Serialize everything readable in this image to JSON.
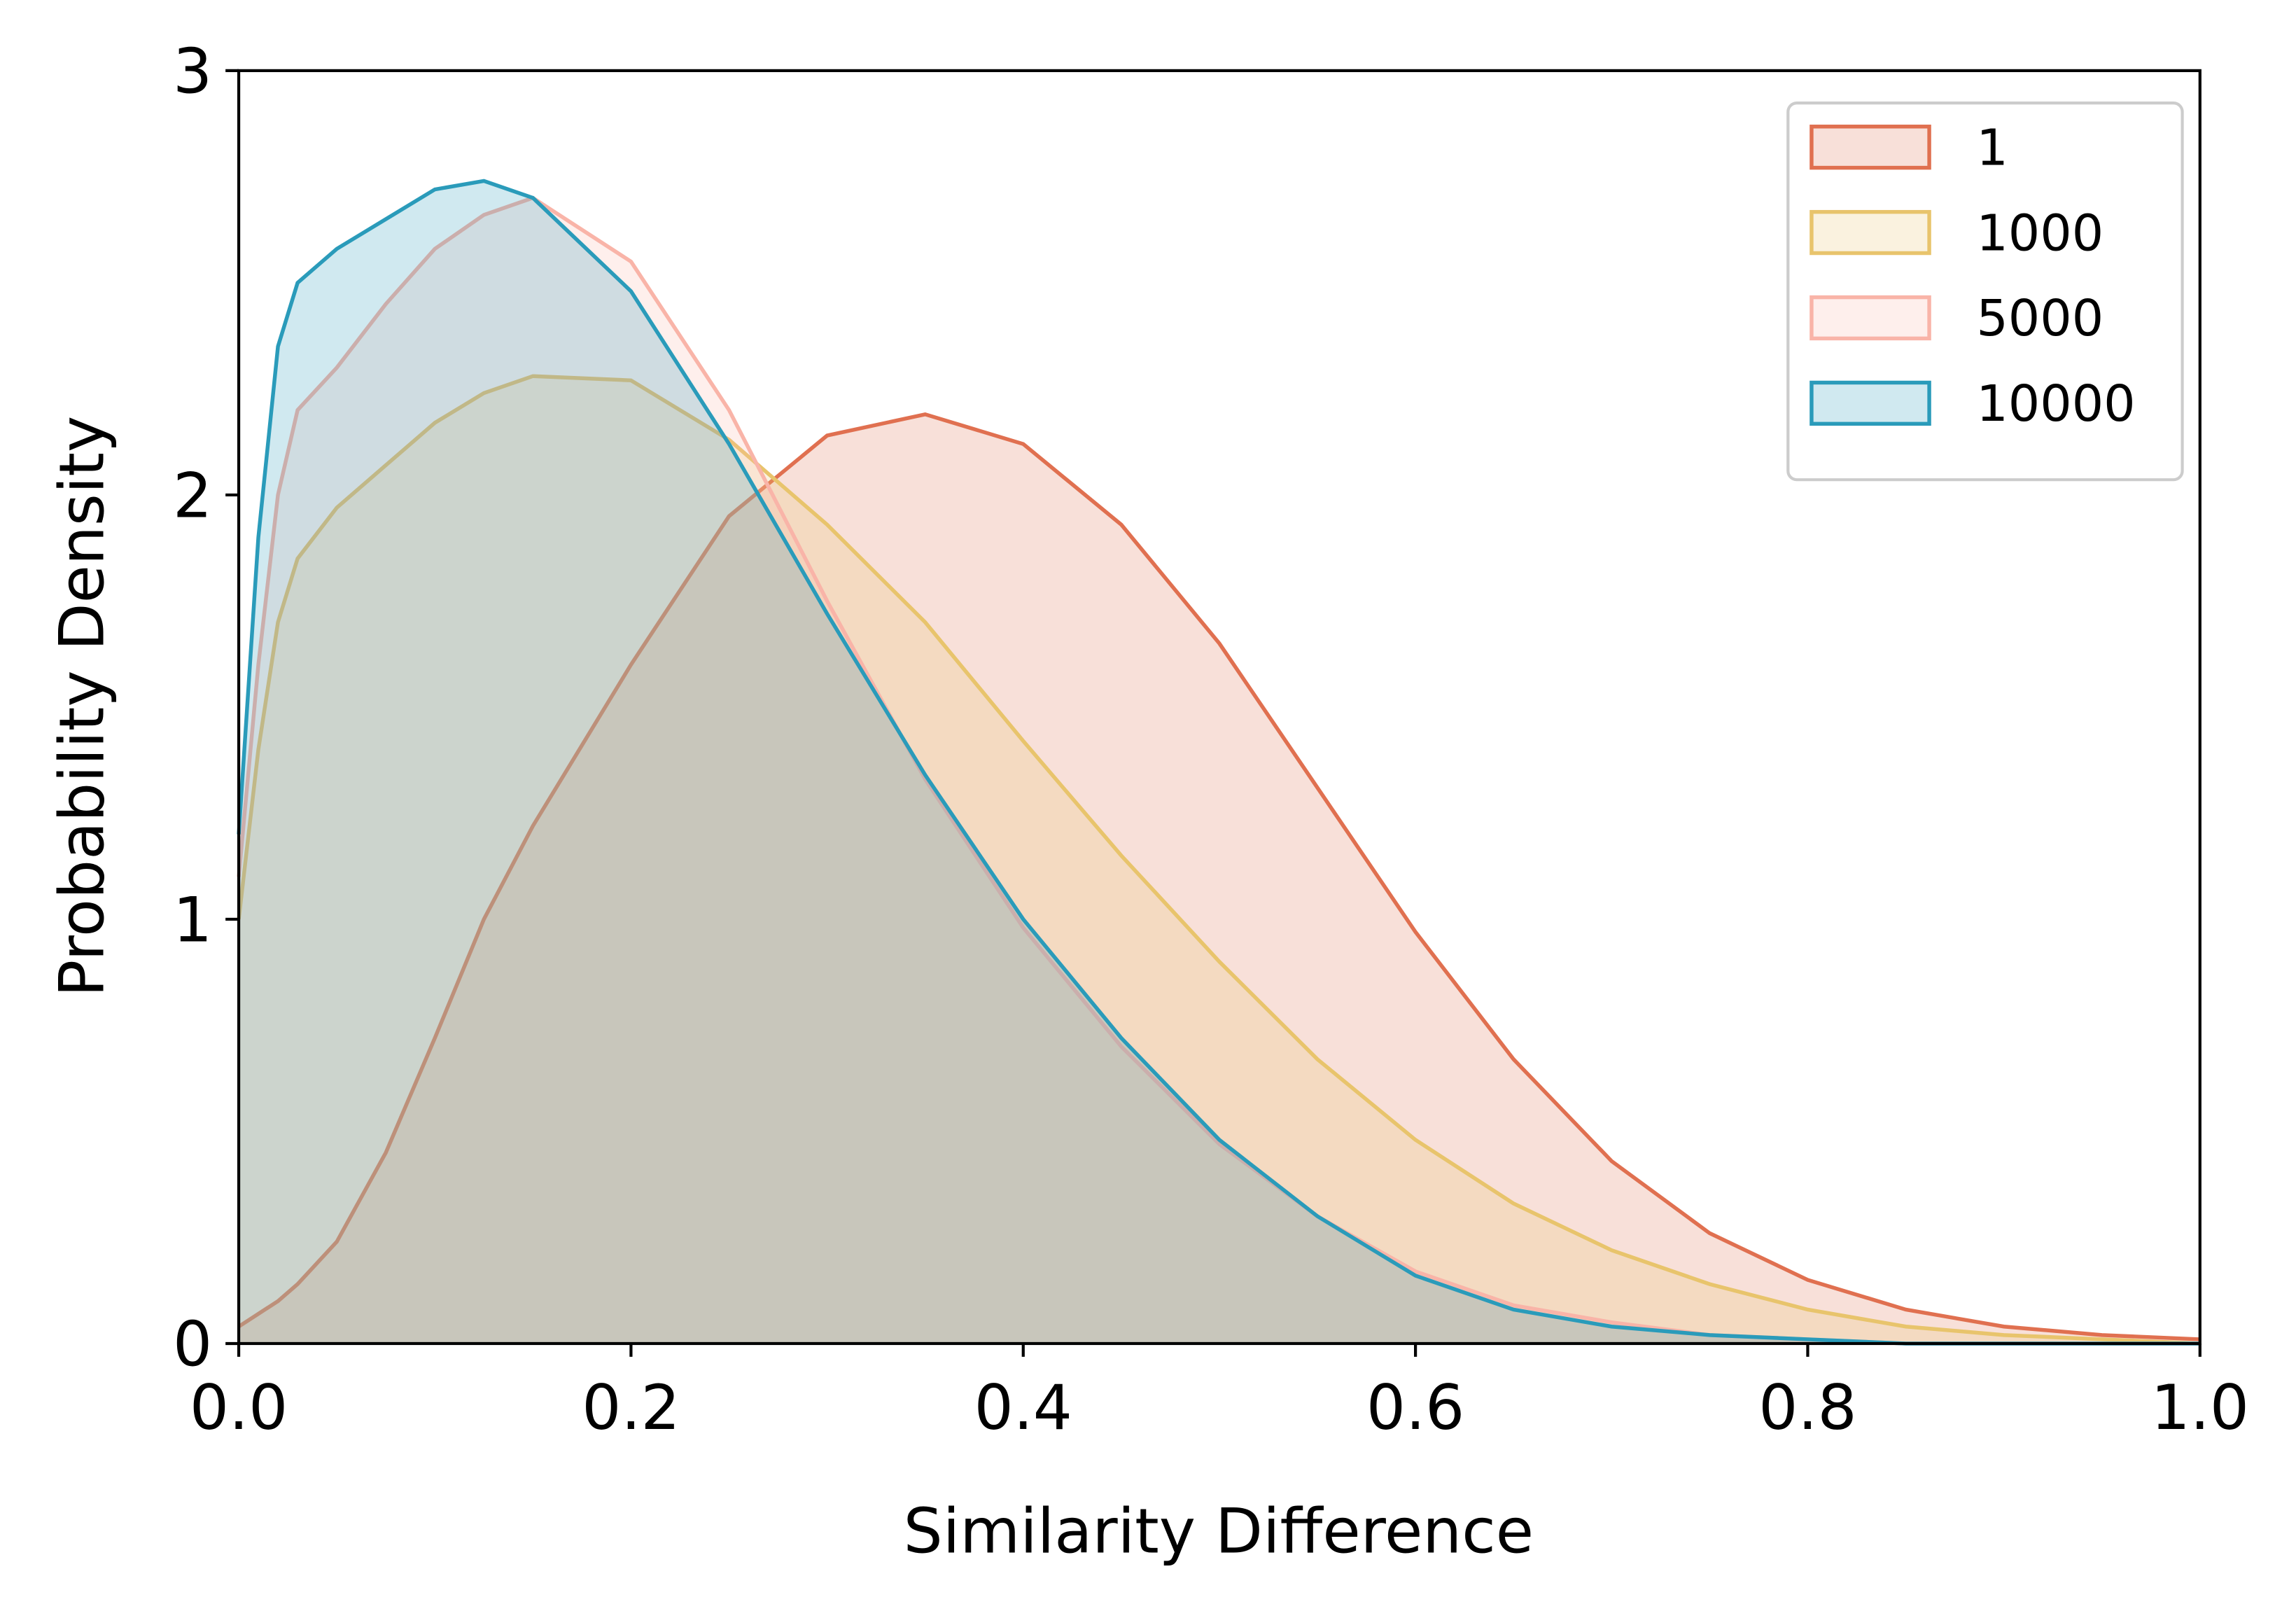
{
  "chart_data": {
    "type": "area",
    "xlabel": "Similarity Difference",
    "ylabel": "Probability Density",
    "x": [
      0,
      0.01,
      0.02,
      0.03,
      0.05,
      0.075,
      0.1,
      0.125,
      0.15,
      0.2,
      0.25,
      0.3,
      0.35,
      0.4,
      0.45,
      0.5,
      0.55,
      0.6,
      0.65,
      0.7,
      0.75,
      0.8,
      0.85,
      0.9,
      0.95,
      1.0
    ],
    "series": [
      {
        "name": "1",
        "color": "#e07050",
        "values": [
          0.04,
          0.07,
          0.1,
          0.14,
          0.24,
          0.45,
          0.72,
          1.0,
          1.22,
          1.6,
          1.95,
          2.14,
          2.19,
          2.12,
          1.93,
          1.65,
          1.31,
          0.97,
          0.67,
          0.43,
          0.26,
          0.15,
          0.08,
          0.04,
          0.02,
          0.01
        ]
      },
      {
        "name": "1000",
        "color": "#e8c46c",
        "values": [
          1.0,
          1.4,
          1.7,
          1.85,
          1.97,
          2.07,
          2.17,
          2.24,
          2.28,
          2.27,
          2.13,
          1.93,
          1.7,
          1.42,
          1.15,
          0.9,
          0.67,
          0.48,
          0.33,
          0.22,
          0.14,
          0.08,
          0.04,
          0.02,
          0.01,
          0
        ]
      },
      {
        "name": "5000",
        "color": "#f9b4a8",
        "values": [
          1.1,
          1.6,
          2.0,
          2.2,
          2.3,
          2.45,
          2.58,
          2.66,
          2.7,
          2.55,
          2.2,
          1.75,
          1.33,
          0.98,
          0.7,
          0.47,
          0.3,
          0.17,
          0.09,
          0.05,
          0.02,
          0.01,
          0,
          0,
          0,
          0
        ]
      },
      {
        "name": "10000",
        "color": "#2a9bba",
        "values": [
          1.2,
          1.9,
          2.35,
          2.5,
          2.58,
          2.65,
          2.72,
          2.74,
          2.7,
          2.48,
          2.12,
          1.72,
          1.34,
          1.0,
          0.72,
          0.48,
          0.3,
          0.16,
          0.08,
          0.04,
          0.02,
          0.01,
          0,
          0,
          0,
          0
        ]
      }
    ],
    "xlim": [
      0,
      1
    ],
    "ylim": [
      0,
      3
    ],
    "xticks": [
      {
        "value": 0,
        "label": "0.0"
      },
      0.2,
      0.4,
      0.6,
      0.8,
      {
        "value": 1,
        "label": "1.0"
      }
    ],
    "yticks": [
      0,
      1,
      2,
      3
    ],
    "legend": "upper right"
  }
}
